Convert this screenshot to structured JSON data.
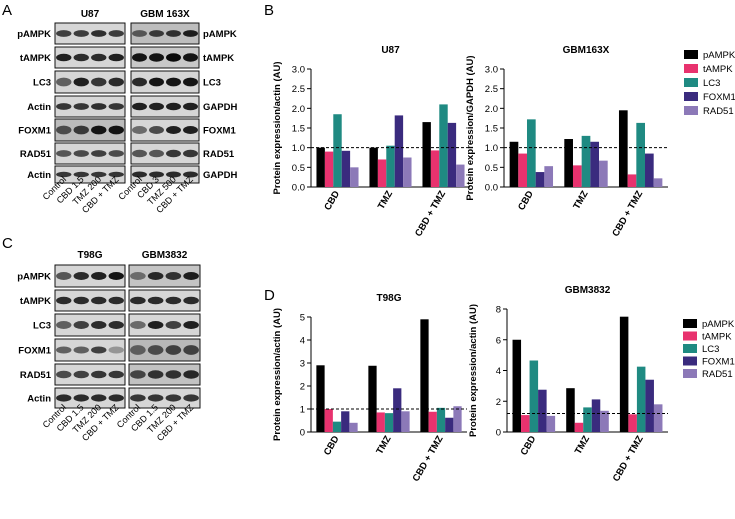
{
  "panel_letters": [
    "A",
    "B",
    "C",
    "D"
  ],
  "blots": [
    {
      "cell_lines": [
        "U87",
        "GBM 163X"
      ],
      "left_labels": [
        "pAMPK",
        "tAMPK",
        "LC3",
        "Actin",
        "FOXM1",
        "RAD51",
        "Actin"
      ],
      "right_labels": [
        "pAMPK",
        "tAMPK",
        "LC3",
        "GAPDH",
        "FOXM1",
        "RAD51",
        "GAPDH"
      ],
      "lanes_left": [
        "Control",
        "CBD 1.5",
        "TMZ 200",
        "CBD + TMZ"
      ],
      "lanes_right": [
        "Control",
        "CBD 3",
        "TMZ 500",
        "CBD + TMZ"
      ]
    },
    {
      "cell_lines": [
        "T98G",
        "GBM3832"
      ],
      "left_labels": [
        "pAMPK",
        "tAMPK",
        "LC3",
        "FOXM1",
        "RAD51",
        "Actin"
      ],
      "right_labels": [],
      "lanes_left": [
        "Control",
        "CBD 1.5",
        "TMZ 200",
        "CBD + TMZ"
      ],
      "lanes_right": [
        "Control",
        "CBD 1.5",
        "TMZ 200",
        "CBD + TMZ"
      ]
    }
  ],
  "legend_entries": [
    "pAMPK",
    "tAMPK",
    "LC3",
    "FOXM1",
    "RAD51"
  ],
  "colors": [
    "#000000",
    "#e8326e",
    "#1f8a82",
    "#3a2b7e",
    "#8c79b8"
  ],
  "chart_data": [
    {
      "type": "bar",
      "title": "U87",
      "ylabel": "Protein expression/actin (AU)",
      "categories": [
        "CBD",
        "TMZ",
        "CBD + TMZ"
      ],
      "ylim": [
        0,
        3.0
      ],
      "yticks": [
        "0.0",
        "0.5",
        "1.0",
        "1.5",
        "2.0",
        "2.5",
        "3.0"
      ],
      "reference_line": 1.0,
      "series": [
        {
          "name": "pAMPK",
          "values": [
            1.0,
            1.0,
            1.65
          ]
        },
        {
          "name": "tAMPK",
          "values": [
            0.9,
            0.7,
            0.93
          ]
        },
        {
          "name": "LC3",
          "values": [
            1.85,
            1.05,
            2.1
          ]
        },
        {
          "name": "FOXM1",
          "values": [
            0.92,
            1.82,
            1.63
          ]
        },
        {
          "name": "RAD51",
          "values": [
            0.5,
            0.75,
            0.57
          ]
        }
      ]
    },
    {
      "type": "bar",
      "title": "GBM163X",
      "ylabel": "Protein expression/GAPDH (AU)",
      "categories": [
        "CBD",
        "TMZ",
        "CBD + TMZ"
      ],
      "ylim": [
        0,
        3.0
      ],
      "yticks": [
        "0.0",
        "0.5",
        "1.0",
        "1.5",
        "2.0",
        "2.5",
        "3.0"
      ],
      "reference_line": 1.0,
      "series": [
        {
          "name": "pAMPK",
          "values": [
            1.15,
            1.22,
            1.95
          ]
        },
        {
          "name": "tAMPK",
          "values": [
            0.85,
            0.55,
            0.32
          ]
        },
        {
          "name": "LC3",
          "values": [
            1.72,
            1.3,
            1.63
          ]
        },
        {
          "name": "FOXM1",
          "values": [
            0.38,
            1.15,
            0.85
          ]
        },
        {
          "name": "RAD51",
          "values": [
            0.53,
            0.67,
            0.22
          ]
        }
      ]
    },
    {
      "type": "bar",
      "title": "T98G",
      "ylabel": "Protein expression/actin (AU)",
      "categories": [
        "CBD",
        "TMZ",
        "CBD + TMZ"
      ],
      "ylim": [
        0,
        5
      ],
      "yticks": [
        "0",
        "1",
        "2",
        "3",
        "4",
        "5"
      ],
      "reference_line": 1.0,
      "series": [
        {
          "name": "pAMPK",
          "values": [
            2.9,
            2.88,
            4.9
          ]
        },
        {
          "name": "tAMPK",
          "values": [
            1.0,
            0.85,
            0.88
          ]
        },
        {
          "name": "LC3",
          "values": [
            0.45,
            0.82,
            1.05
          ]
        },
        {
          "name": "FOXM1",
          "values": [
            0.9,
            1.9,
            0.62
          ]
        },
        {
          "name": "RAD51",
          "values": [
            0.4,
            0.9,
            1.12
          ]
        }
      ]
    },
    {
      "type": "bar",
      "title": "GBM3832",
      "ylabel": "Protein expression/actin (AU)",
      "categories": [
        "CBD",
        "TMZ",
        "CBD + TMZ"
      ],
      "ylim": [
        0,
        8
      ],
      "yticks": [
        "0",
        "2",
        "4",
        "6",
        "8"
      ],
      "reference_line": 1.2,
      "series": [
        {
          "name": "pAMPK",
          "values": [
            6.0,
            2.85,
            7.5
          ]
        },
        {
          "name": "tAMPK",
          "values": [
            1.1,
            0.6,
            1.15
          ]
        },
        {
          "name": "LC3",
          "values": [
            4.65,
            1.6,
            4.25
          ]
        },
        {
          "name": "FOXM1",
          "values": [
            2.75,
            2.12,
            3.4
          ]
        },
        {
          "name": "RAD51",
          "values": [
            1.05,
            1.38,
            1.8
          ]
        }
      ]
    }
  ]
}
